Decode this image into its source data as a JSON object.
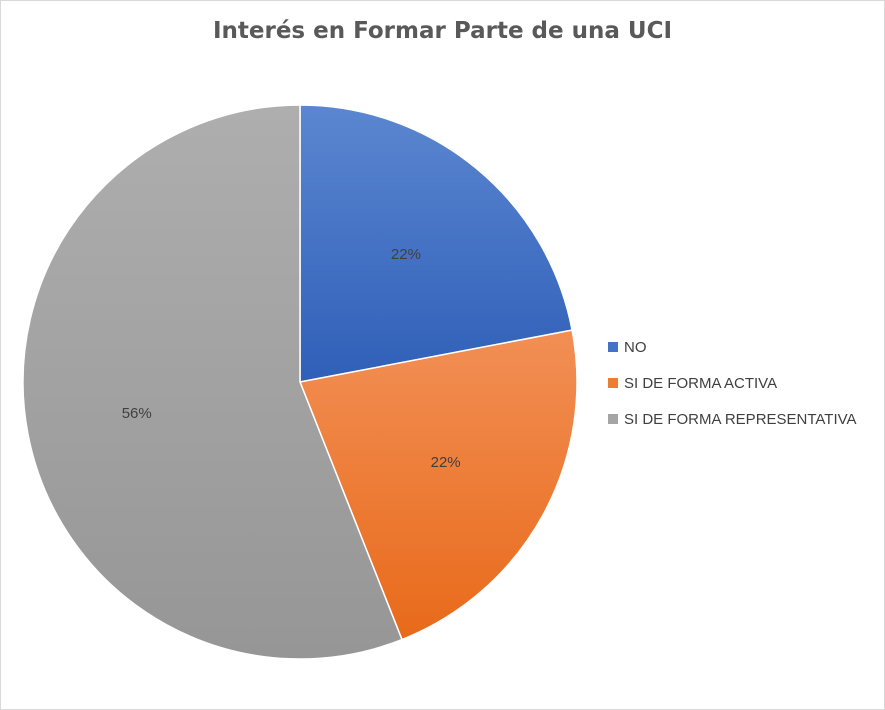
{
  "chart_data": {
    "type": "pie",
    "title": "Interés en Formar Parte de una UCI",
    "categories": [
      "NO",
      "SI DE FORMA ACTIVA",
      "SI DE FORMA REPRESENTATIVA"
    ],
    "values": [
      22,
      22,
      56
    ],
    "labels": [
      "22%",
      "22%",
      "56%"
    ],
    "colors": [
      "#4472C4",
      "#ED7D31",
      "#A5A5A5"
    ],
    "legend_position": "right"
  }
}
